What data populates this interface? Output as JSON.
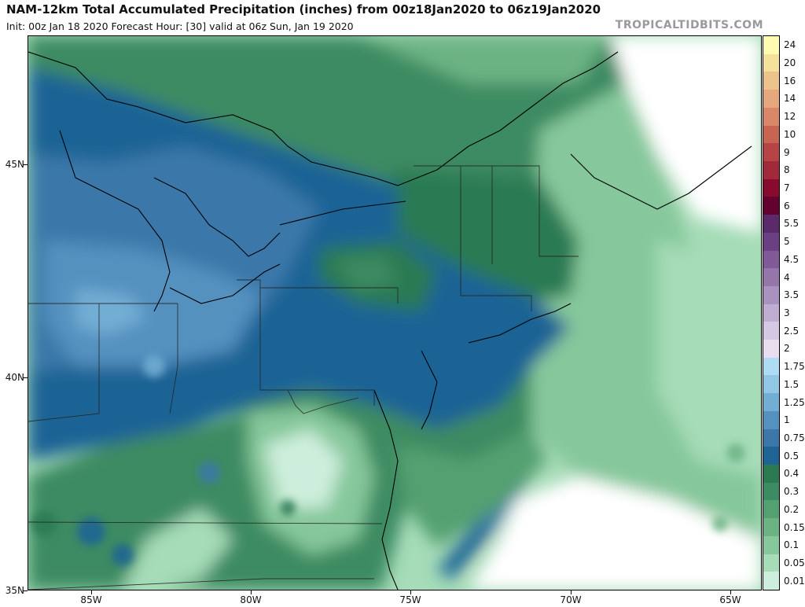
{
  "header": {
    "title": "NAM-12km Total Accumulated Precipitation (inches) from 00z18Jan2020 to 06z19Jan2020",
    "subtitle": "Init: 00z Jan 18 2020   Forecast Hour: [30]   valid at 06z Sun, Jan 19 2020",
    "brand": "TROPICALTIDBITS.COM"
  },
  "map": {
    "lat_labels": [
      "45N",
      "40N",
      "35N"
    ],
    "lon_labels": [
      "85W",
      "80W",
      "75W",
      "70W",
      "65W"
    ],
    "extent": {
      "lon_min": -87,
      "lon_max": -64,
      "lat_min": 35,
      "lat_max": 48
    }
  },
  "colorbar": {
    "levels": [
      "24",
      "20",
      "16",
      "14",
      "12",
      "10",
      "9",
      "8",
      "7",
      "6",
      "5.5",
      "5",
      "4.5",
      "4",
      "3.5",
      "3",
      "2.5",
      "2",
      "1.75",
      "1.5",
      "1.25",
      "1",
      "0.75",
      "0.5",
      "0.4",
      "0.3",
      "0.2",
      "0.15",
      "0.1",
      "0.05",
      "0.01"
    ],
    "colors": [
      "#fffbb3",
      "#f4e29a",
      "#ecc38a",
      "#e5a77d",
      "#d98768",
      "#c86452",
      "#b74445",
      "#a2293a",
      "#880a2e",
      "#64022f",
      "#5a2a6a",
      "#6b4082",
      "#805a96",
      "#9476aa",
      "#a992bf",
      "#bfaed2",
      "#d4c8e2",
      "#e9def0",
      "#afdcf5",
      "#91c6e4",
      "#72aed4",
      "#5591bf",
      "#3b78a9",
      "#1f6495",
      "#2b7a52",
      "#3d8b62",
      "#55a071",
      "#6cb383",
      "#86c89b",
      "#a6dcb8",
      "#cdeedc"
    ]
  }
}
